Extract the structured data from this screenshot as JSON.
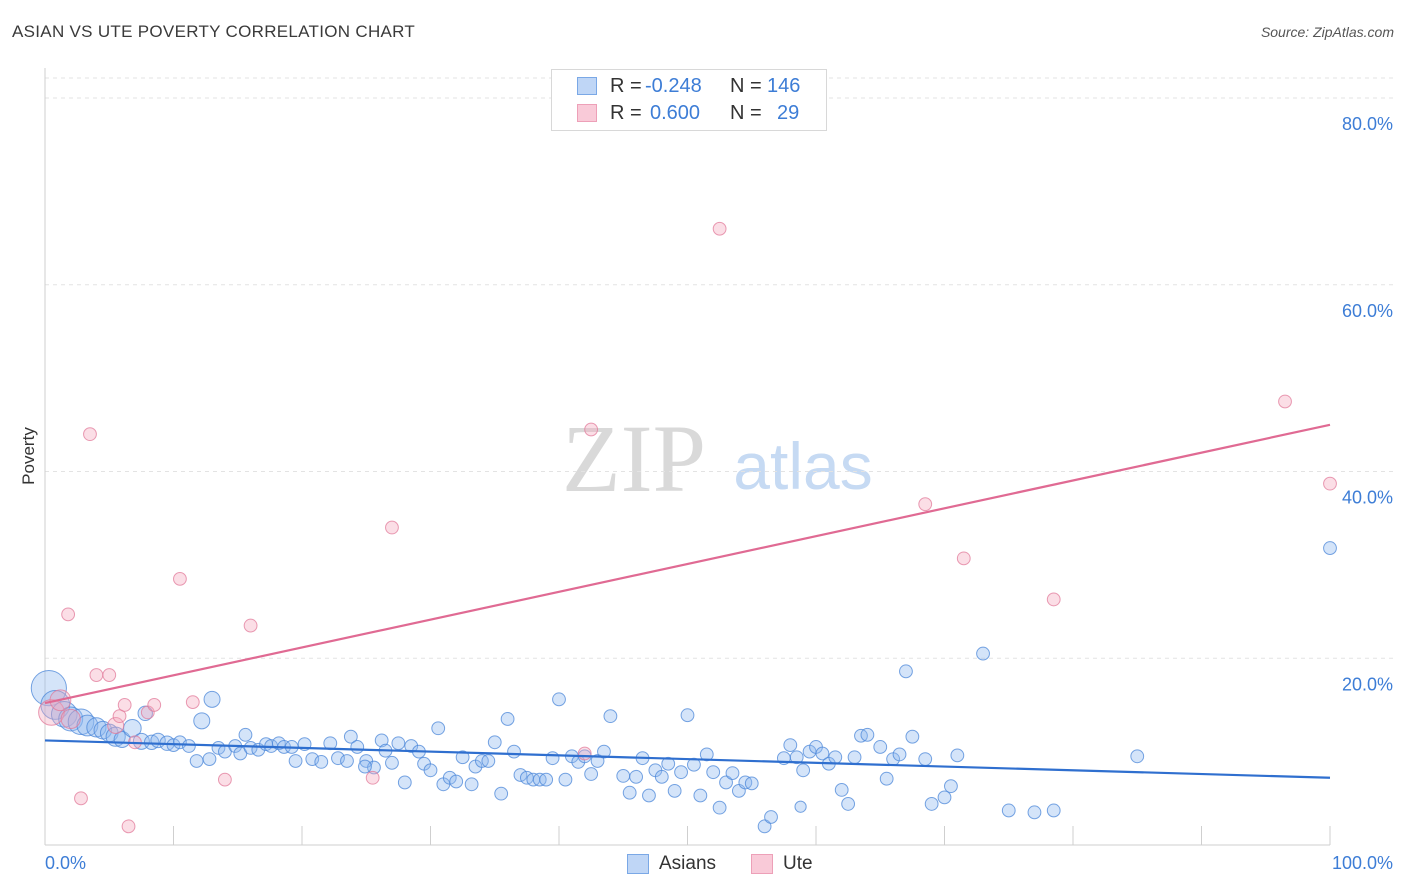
{
  "header": {
    "title": "ASIAN VS UTE POVERTY CORRELATION CHART",
    "source": "Source: ZipAtlas.com"
  },
  "legend_top": {
    "rows": [
      {
        "r_label": "R =",
        "r_value": "-0.248",
        "n_label": "N =",
        "n_value": "146",
        "color": "#8fb8ef"
      },
      {
        "r_label": "R =",
        "r_value": "0.600",
        "n_label": "N =",
        "n_value": "29",
        "color": "#f4a7be"
      }
    ]
  },
  "legend_bottom": {
    "items": [
      {
        "label": "Asians",
        "color": "#8fb8ef"
      },
      {
        "label": "Ute",
        "color": "#f4a7be"
      }
    ]
  },
  "watermark": {
    "zip": "ZIP",
    "atlas": "atlas"
  },
  "chart_data": {
    "type": "scatter",
    "title": "ASIAN VS UTE POVERTY CORRELATION CHART",
    "ylabel": "Poverty",
    "xlabel": "",
    "xlim": [
      0,
      100
    ],
    "ylim": [
      0,
      83
    ],
    "x_tick_labels": [
      "0.0%",
      "100.0%"
    ],
    "y_ticks": [
      20,
      40,
      60,
      80
    ],
    "y_tick_labels": [
      "20.0%",
      "40.0%",
      "60.0%",
      "80.0%"
    ],
    "grid": "horizontal dashed",
    "legend_position": "top-center",
    "series": [
      {
        "name": "Asians",
        "color": "#8fb8ef",
        "edge": "#4a86d8",
        "trend": {
          "x": [
            0,
            100
          ],
          "y": [
            11.2,
            7.2
          ],
          "color": "#2f6fcf"
        },
        "points": [
          [
            0.3,
            16.8,
            2.2
          ],
          [
            0.8,
            15.0,
            1.8
          ],
          [
            1.5,
            14.0,
            1.6
          ],
          [
            2.0,
            13.5,
            1.5
          ],
          [
            2.8,
            13.2,
            1.6
          ],
          [
            3.3,
            12.8,
            1.3
          ],
          [
            4.0,
            12.6,
            1.2
          ],
          [
            4.5,
            12.3,
            1.1
          ],
          [
            5.0,
            12.0,
            1.1
          ],
          [
            5.5,
            11.6,
            1.2
          ],
          [
            6.0,
            11.3,
            1.0
          ],
          [
            6.8,
            12.5,
            1.1
          ],
          [
            7.5,
            11.1,
            1.0
          ],
          [
            7.8,
            14.1,
            0.9
          ],
          [
            8.3,
            11.0,
            0.9
          ],
          [
            8.8,
            11.2,
            0.9
          ],
          [
            9.5,
            10.9,
            0.9
          ],
          [
            10.0,
            10.7,
            0.8
          ],
          [
            10.5,
            11.0,
            0.8
          ],
          [
            11.2,
            10.6,
            0.8
          ],
          [
            11.8,
            9.0,
            0.8
          ],
          [
            12.2,
            13.3,
            1.0
          ],
          [
            12.8,
            9.2,
            0.8
          ],
          [
            13.0,
            15.6,
            1.0
          ],
          [
            13.5,
            10.4,
            0.8
          ],
          [
            14.0,
            10.0,
            0.8
          ],
          [
            14.8,
            10.6,
            0.8
          ],
          [
            15.2,
            9.8,
            0.8
          ],
          [
            15.6,
            11.8,
            0.8
          ],
          [
            16.0,
            10.4,
            0.8
          ],
          [
            16.6,
            10.2,
            0.8
          ],
          [
            17.2,
            10.8,
            0.8
          ],
          [
            17.6,
            10.6,
            0.8
          ],
          [
            18.2,
            10.9,
            0.8
          ],
          [
            18.6,
            10.5,
            0.8
          ],
          [
            19.2,
            10.5,
            0.8
          ],
          [
            19.5,
            9.0,
            0.8
          ],
          [
            20.2,
            10.8,
            0.8
          ],
          [
            20.8,
            9.2,
            0.8
          ],
          [
            21.5,
            8.9,
            0.8
          ],
          [
            22.2,
            10.9,
            0.8
          ],
          [
            22.8,
            9.3,
            0.8
          ],
          [
            23.5,
            9.0,
            0.8
          ],
          [
            23.8,
            11.6,
            0.8
          ],
          [
            24.3,
            10.5,
            0.8
          ],
          [
            25.0,
            9.0,
            0.8
          ],
          [
            25.6,
            8.3,
            0.8
          ],
          [
            26.2,
            11.2,
            0.8
          ],
          [
            26.5,
            10.1,
            0.8
          ],
          [
            27.0,
            8.8,
            0.8
          ],
          [
            27.5,
            10.9,
            0.8
          ],
          [
            28.0,
            6.7,
            0.8
          ],
          [
            28.5,
            10.6,
            0.8
          ],
          [
            29.1,
            10.0,
            0.8
          ],
          [
            29.5,
            8.7,
            0.8
          ],
          [
            30.0,
            8.0,
            0.8
          ],
          [
            30.6,
            12.5,
            0.8
          ],
          [
            31.0,
            6.5,
            0.8
          ],
          [
            31.5,
            7.2,
            0.8
          ],
          [
            32.0,
            6.8,
            0.8
          ],
          [
            32.5,
            9.4,
            0.8
          ],
          [
            33.2,
            6.5,
            0.8
          ],
          [
            33.5,
            8.4,
            0.8
          ],
          [
            34.0,
            9.0,
            0.8
          ],
          [
            34.5,
            9.0,
            0.8
          ],
          [
            35.0,
            11.0,
            0.8
          ],
          [
            35.5,
            5.5,
            0.8
          ],
          [
            36.0,
            13.5,
            0.8
          ],
          [
            36.5,
            10.0,
            0.8
          ],
          [
            37.0,
            7.5,
            0.8
          ],
          [
            37.5,
            7.2,
            0.8
          ],
          [
            38.0,
            7.0,
            0.8
          ],
          [
            38.5,
            7.0,
            0.8
          ],
          [
            39.0,
            7.0,
            0.8
          ],
          [
            39.5,
            9.3,
            0.8
          ],
          [
            40.0,
            15.6,
            0.8
          ],
          [
            40.5,
            7.0,
            0.8
          ],
          [
            41.0,
            9.5,
            0.8
          ],
          [
            41.5,
            8.9,
            0.8
          ],
          [
            42.0,
            9.5,
            0.8
          ],
          [
            42.5,
            7.6,
            0.8
          ],
          [
            43.0,
            9.0,
            0.8
          ],
          [
            43.5,
            10.0,
            0.8
          ],
          [
            44.0,
            13.8,
            0.8
          ],
          [
            45.0,
            7.4,
            0.8
          ],
          [
            45.5,
            5.6,
            0.8
          ],
          [
            46.0,
            7.3,
            0.8
          ],
          [
            46.5,
            9.3,
            0.8
          ],
          [
            47.0,
            5.3,
            0.8
          ],
          [
            47.5,
            8.0,
            0.8
          ],
          [
            48.0,
            7.3,
            0.8
          ],
          [
            48.5,
            8.7,
            0.8
          ],
          [
            49.0,
            5.8,
            0.8
          ],
          [
            49.5,
            7.8,
            0.8
          ],
          [
            50.0,
            13.9,
            0.8
          ],
          [
            50.5,
            8.6,
            0.8
          ],
          [
            51.0,
            5.3,
            0.8
          ],
          [
            51.5,
            9.7,
            0.8
          ],
          [
            52.0,
            7.8,
            0.8
          ],
          [
            52.5,
            4.0,
            0.8
          ],
          [
            53.0,
            6.7,
            0.8
          ],
          [
            53.5,
            7.7,
            0.8
          ],
          [
            54.0,
            5.8,
            0.8
          ],
          [
            54.5,
            6.7,
            0.8
          ],
          [
            55.0,
            6.6,
            0.8
          ],
          [
            56.0,
            2.0,
            0.8
          ],
          [
            56.5,
            3.0,
            0.8
          ],
          [
            57.5,
            9.3,
            0.8
          ],
          [
            58.0,
            10.7,
            0.8
          ],
          [
            58.5,
            9.4,
            0.8
          ],
          [
            59.0,
            8.0,
            0.8
          ],
          [
            59.5,
            10.0,
            0.8
          ],
          [
            60.0,
            10.5,
            0.8
          ],
          [
            60.5,
            9.8,
            0.8
          ],
          [
            61.0,
            8.7,
            0.8
          ],
          [
            61.5,
            9.4,
            0.8
          ],
          [
            62.0,
            5.9,
            0.8
          ],
          [
            62.5,
            4.4,
            0.8
          ],
          [
            63.0,
            9.4,
            0.8
          ],
          [
            63.5,
            11.7,
            0.8
          ],
          [
            64.0,
            11.8,
            0.8
          ],
          [
            65.0,
            10.5,
            0.8
          ],
          [
            65.5,
            7.1,
            0.8
          ],
          [
            66.0,
            9.2,
            0.8
          ],
          [
            66.5,
            9.7,
            0.8
          ],
          [
            67.0,
            18.6,
            0.8
          ],
          [
            67.5,
            11.6,
            0.8
          ],
          [
            68.5,
            9.2,
            0.8
          ],
          [
            69.0,
            4.4,
            0.8
          ],
          [
            70.0,
            5.1,
            0.8
          ],
          [
            70.5,
            6.3,
            0.8
          ],
          [
            71.0,
            9.6,
            0.8
          ],
          [
            73.0,
            20.5,
            0.8
          ],
          [
            75.0,
            3.7,
            0.8
          ],
          [
            77.0,
            3.5,
            0.8
          ],
          [
            78.5,
            3.7,
            0.8
          ],
          [
            85.0,
            9.5,
            0.8
          ],
          [
            100.0,
            31.8,
            0.8
          ],
          [
            58.8,
            4.1,
            0.7
          ],
          [
            24.9,
            8.4,
            0.8
          ]
        ]
      },
      {
        "name": "Ute",
        "color": "#f4a7be",
        "edge": "#e27a9a",
        "trend": {
          "x": [
            0,
            100
          ],
          "y": [
            15.2,
            45.0
          ],
          "color": "#e06a93"
        },
        "points": [
          [
            0.5,
            14.2,
            1.6
          ],
          [
            1.2,
            15.5,
            1.3
          ],
          [
            2.0,
            13.5,
            1.2
          ],
          [
            1.8,
            24.7,
            0.8
          ],
          [
            2.8,
            5.0,
            0.8
          ],
          [
            3.5,
            44.0,
            0.8
          ],
          [
            4.0,
            18.2,
            0.8
          ],
          [
            5.0,
            18.2,
            0.8
          ],
          [
            5.5,
            12.8,
            1.0
          ],
          [
            5.8,
            13.8,
            0.8
          ],
          [
            6.2,
            15.0,
            0.8
          ],
          [
            6.5,
            2.0,
            0.8
          ],
          [
            7.0,
            11.0,
            0.8
          ],
          [
            8.0,
            14.2,
            0.8
          ],
          [
            8.5,
            15.0,
            0.8
          ],
          [
            10.5,
            28.5,
            0.8
          ],
          [
            11.5,
            15.3,
            0.8
          ],
          [
            14.0,
            7.0,
            0.8
          ],
          [
            16.0,
            23.5,
            0.8
          ],
          [
            25.5,
            7.2,
            0.8
          ],
          [
            27.0,
            34.0,
            0.8
          ],
          [
            42.0,
            9.8,
            0.8
          ],
          [
            42.5,
            44.5,
            0.8
          ],
          [
            52.5,
            66.0,
            0.8
          ],
          [
            68.5,
            36.5,
            0.8
          ],
          [
            71.5,
            30.7,
            0.8
          ],
          [
            78.5,
            26.3,
            0.8
          ],
          [
            96.5,
            47.5,
            0.8
          ],
          [
            100.0,
            38.7,
            0.8
          ]
        ]
      }
    ]
  }
}
